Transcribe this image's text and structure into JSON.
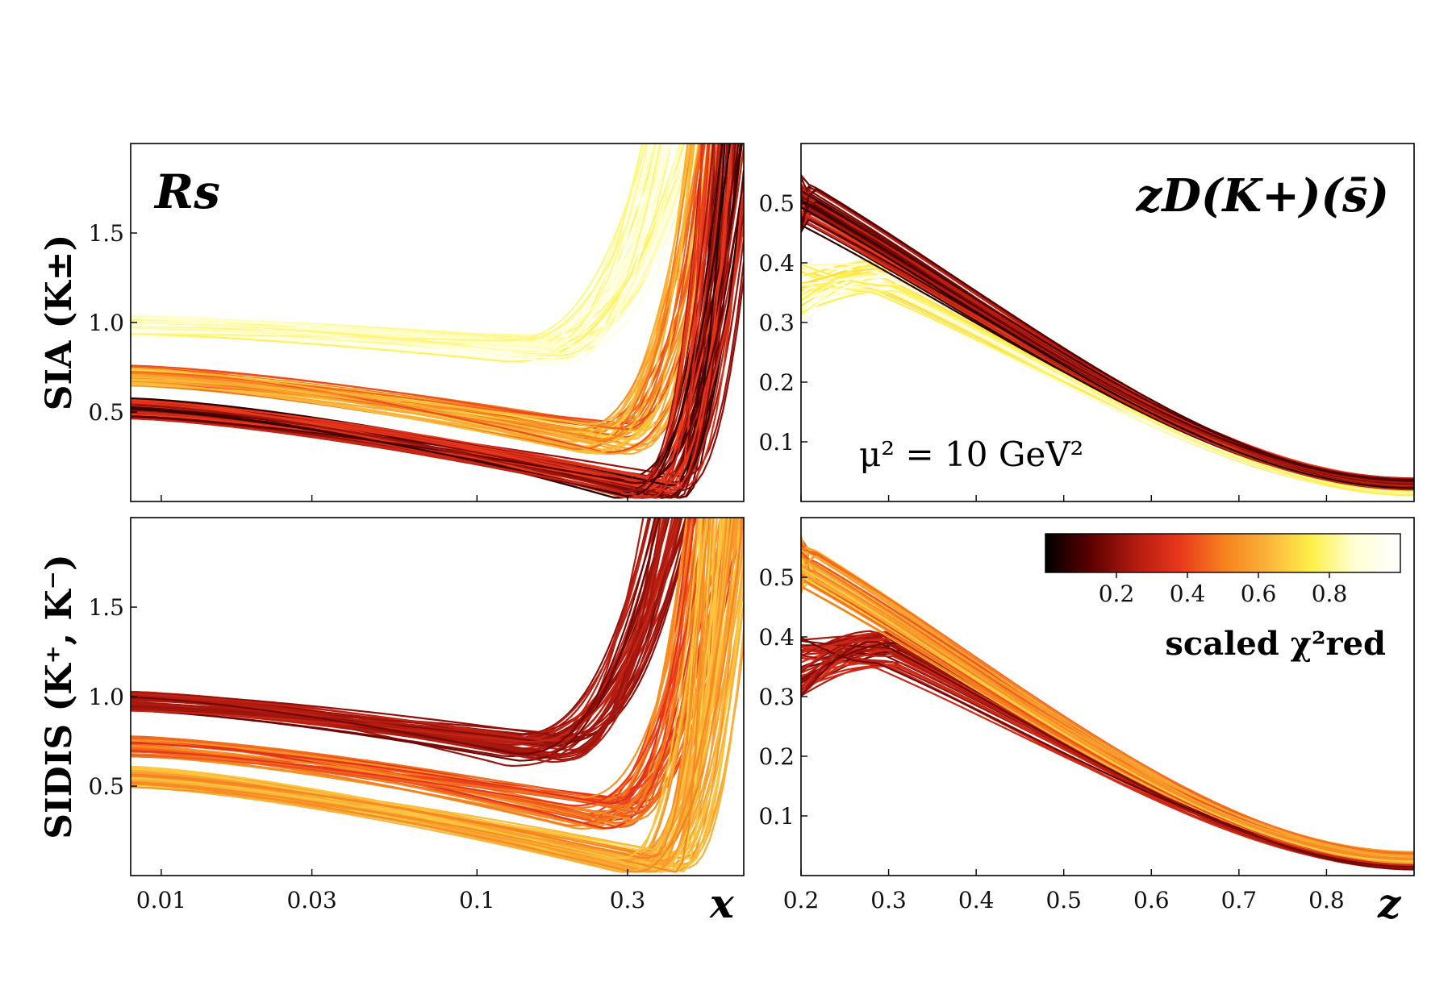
{
  "colors": {
    "colormap": "hot",
    "stops": [
      "#000000",
      "#5a0000",
      "#b01a10",
      "#e8361c",
      "#f5801e",
      "#fbb33a",
      "#fdf04a",
      "#ffffd8",
      "#ffffff"
    ]
  },
  "figure": {
    "row_labels": [
      "SIA (K±)",
      "SIDIS (K⁺, K⁻)"
    ],
    "x_axis_label": "x",
    "z_axis_label": "z",
    "annotation": "μ² = 10 GeV²",
    "colorbar": {
      "label": "scaled χ²red",
      "ticks": [
        "0.2",
        "0.4",
        "0.6",
        "0.8"
      ],
      "range": [
        0,
        1
      ]
    }
  },
  "chart_data": [
    {
      "type": "line",
      "panel": "top-left",
      "title": "Rs",
      "row_label": "SIA (K±)",
      "xscale": "log",
      "xlim": [
        0.008,
        0.7
      ],
      "ylim": [
        0,
        2.0
      ],
      "x_ticks": [
        "0.01",
        "0.03",
        "0.1",
        "0.3"
      ],
      "y_ticks": [
        "0.5",
        "1.0",
        "1.5"
      ],
      "series_groups": [
        {
          "group": "upper band",
          "chi2_scaled": "0.75-0.95",
          "n_curves": 40,
          "y_at_x_0.01": 0.98,
          "y_min": 0.85,
          "x_at_min": 0.15,
          "rise_to": 2.0,
          "x_rise_end": 0.45
        },
        {
          "group": "mid band",
          "chi2_scaled": "0.4-0.7",
          "n_curves": 45,
          "y_at_x_0.01": 0.7,
          "y_min": 0.35,
          "x_at_min": 0.25,
          "rise_to": 2.0,
          "x_rise_end": 0.6
        },
        {
          "group": "lower band",
          "chi2_scaled": "0.05-0.4",
          "n_curves": 60,
          "y_at_x_0.01": 0.52,
          "y_min": 0.05,
          "x_at_min": 0.35,
          "rise_to": 2.0,
          "x_rise_end": 0.65
        }
      ]
    },
    {
      "type": "line",
      "panel": "top-right",
      "title": "zD(K+)(s̄)",
      "xlim": [
        0.2,
        0.9
      ],
      "ylim": [
        0,
        0.6
      ],
      "x_ticks": [
        "0.2",
        "0.3",
        "0.4",
        "0.5",
        "0.6",
        "0.7",
        "0.8"
      ],
      "y_ticks": [
        "0.1",
        "0.2",
        "0.3",
        "0.4",
        "0.5"
      ],
      "series_groups": [
        {
          "group": "high chi2",
          "chi2_scaled": "0.7-0.95",
          "n_curves": 50,
          "y_at_z_0.2": 0.35,
          "peak_y": 0.38,
          "peak_z": 0.3,
          "y_at_z_0.9": 0.02
        },
        {
          "group": "low chi2",
          "chi2_scaled": "0.05-0.4",
          "n_curves": 60,
          "y_at_z_0.2": 0.5,
          "peak_y": 0.5,
          "peak_z": 0.2,
          "y_at_z_0.9": 0.03
        }
      ]
    },
    {
      "type": "line",
      "panel": "bottom-left",
      "row_label": "SIDIS (K⁺, K⁻)",
      "xscale": "log",
      "xlim": [
        0.008,
        0.7
      ],
      "ylim": [
        0,
        2.0
      ],
      "x_ticks": [
        "0.01",
        "0.03",
        "0.1",
        "0.3"
      ],
      "y_ticks": [
        "0.5",
        "1.0",
        "1.5"
      ],
      "series_groups": [
        {
          "group": "upper band",
          "chi2_scaled": "0.15-0.3",
          "n_curves": 45,
          "y_at_x_0.01": 0.98,
          "y_min": 0.7,
          "x_at_min": 0.15,
          "rise_to": 2.0,
          "x_rise_end": 0.45
        },
        {
          "group": "mid band",
          "chi2_scaled": "0.35-0.55",
          "n_curves": 45,
          "y_at_x_0.01": 0.72,
          "y_min": 0.35,
          "x_at_min": 0.25,
          "rise_to": 2.0,
          "x_rise_end": 0.6
        },
        {
          "group": "lower band",
          "chi2_scaled": "0.5-0.7",
          "n_curves": 60,
          "y_at_x_0.01": 0.55,
          "y_min": 0.05,
          "x_at_min": 0.35,
          "rise_to": 2.0,
          "x_rise_end": 0.65
        }
      ]
    },
    {
      "type": "line",
      "panel": "bottom-right",
      "xlim": [
        0.2,
        0.9
      ],
      "ylim": [
        0,
        0.6
      ],
      "x_ticks": [
        "0.2",
        "0.3",
        "0.4",
        "0.5",
        "0.6",
        "0.7",
        "0.8"
      ],
      "y_ticks": [
        "0.1",
        "0.2",
        "0.3",
        "0.4",
        "0.5"
      ],
      "series_groups": [
        {
          "group": "low chi2",
          "chi2_scaled": "0.15-0.35",
          "n_curves": 50,
          "y_at_z_0.2": 0.35,
          "peak_y": 0.38,
          "peak_z": 0.3,
          "y_at_z_0.9": 0.02
        },
        {
          "group": "mid chi2",
          "chi2_scaled": "0.4-0.7",
          "n_curves": 60,
          "y_at_z_0.2": 0.52,
          "peak_y": 0.52,
          "peak_z": 0.2,
          "y_at_z_0.9": 0.03
        }
      ]
    }
  ]
}
